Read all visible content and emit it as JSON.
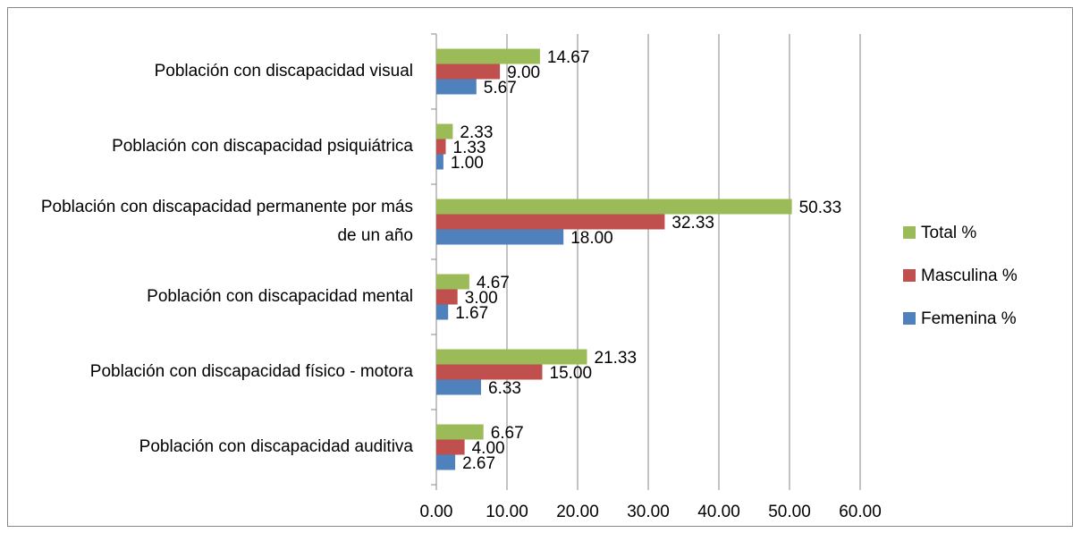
{
  "chart_data": {
    "type": "barh",
    "categories": [
      "Población con discapacidad visual",
      "Población con discapacidad psiquiátrica",
      "Población con discapacidad permanente por más de un año",
      "Población con discapacidad mental",
      "Población con discapacidad físico - motora",
      "Población con discapacidad auditiva"
    ],
    "series": [
      {
        "name": "Total %",
        "color": "#9bbb59",
        "values": [
          14.67,
          2.33,
          50.33,
          4.67,
          21.33,
          6.67
        ],
        "value_labels": [
          "14.67",
          "2.33",
          "50.33",
          "4.67",
          "21.33",
          "6.67"
        ]
      },
      {
        "name": "Masculina %",
        "color": "#c0504d",
        "values": [
          9,
          1.33,
          32.33,
          3,
          15,
          4
        ],
        "value_labels": [
          "9.00",
          "1.33",
          "32.33",
          "3.00",
          "15.00",
          "4.00"
        ]
      },
      {
        "name": "Femenina %",
        "color": "#4f81bd",
        "values": [
          5.67,
          1,
          18,
          1.67,
          6.33,
          2.67
        ],
        "value_labels": [
          "5.67",
          "1.00",
          "18.00",
          "1.67",
          "6.33",
          "2.67"
        ]
      }
    ],
    "xlim": [
      0,
      60
    ],
    "xticks": [
      {
        "value": 0,
        "label": "0.00"
      },
      {
        "value": 10,
        "label": "10.00"
      },
      {
        "value": 20,
        "label": "20.00"
      },
      {
        "value": 30,
        "label": "30.00"
      },
      {
        "value": 40,
        "label": "40.00"
      },
      {
        "value": 50,
        "label": "50.00"
      },
      {
        "value": 60,
        "label": "60.00"
      }
    ],
    "grid": true,
    "legend": "right"
  }
}
